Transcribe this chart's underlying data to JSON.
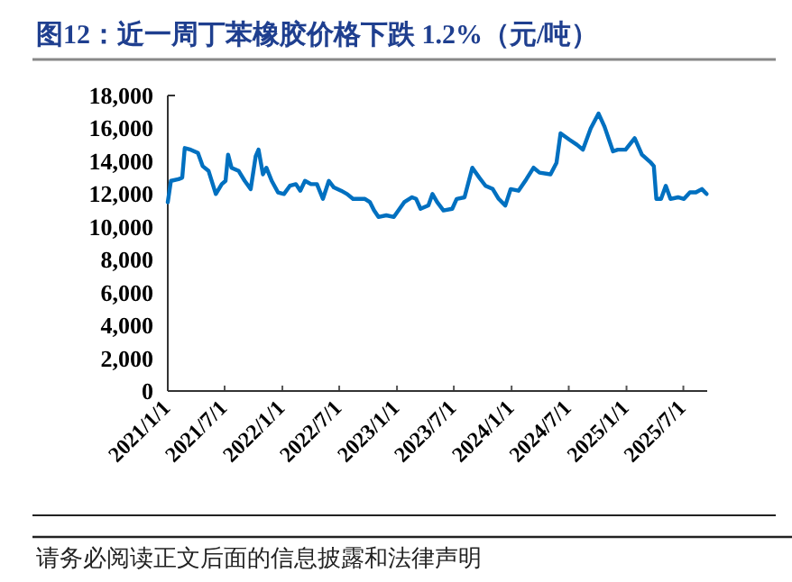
{
  "chart_data": {
    "type": "line",
    "title": "图12：近一周丁苯橡胶价格下跌 1.2%（元/吨）",
    "annotations": [
      "请务必阅读正文后面的信息披露和法律声明"
    ],
    "x": [
      "2021-01-01",
      "2021-01-11",
      "2021-02-04",
      "2021-02-16",
      "2021-02-24",
      "2021-03-15",
      "2021-04-07",
      "2021-04-22",
      "2021-05-11",
      "2021-06-03",
      "2021-06-22",
      "2021-07-04",
      "2021-07-12",
      "2021-07-23",
      "2021-08-15",
      "2021-09-03",
      "2021-09-22",
      "2021-10-08",
      "2021-10-17",
      "2021-10-31",
      "2021-11-11",
      "2021-11-28",
      "2021-12-18",
      "2022-01-06",
      "2022-01-25",
      "2022-02-13",
      "2022-02-27",
      "2022-03-14",
      "2022-04-02",
      "2022-04-21",
      "2022-05-10",
      "2022-05-29",
      "2022-06-14",
      "2022-07-07",
      "2022-07-26",
      "2022-08-14",
      "2022-09-21",
      "2022-10-07",
      "2022-10-20",
      "2022-11-03",
      "2022-11-28",
      "2022-12-22",
      "2023-01-24",
      "2023-02-18",
      "2023-03-03",
      "2023-03-17",
      "2023-04-11",
      "2023-04-24",
      "2023-05-09",
      "2023-05-29",
      "2023-06-26",
      "2023-07-10",
      "2023-08-04",
      "2023-08-29",
      "2023-09-20",
      "2023-10-10",
      "2023-11-02",
      "2023-11-21",
      "2023-12-12",
      "2023-12-29",
      "2024-01-23",
      "2024-02-17",
      "2024-03-11",
      "2024-03-30",
      "2024-05-04",
      "2024-05-23",
      "2024-06-05",
      "2024-07-04",
      "2024-07-27",
      "2024-08-15",
      "2024-09-09",
      "2024-10-04",
      "2024-10-23",
      "2024-11-19",
      "2024-12-04",
      "2024-12-29",
      "2025-01-27",
      "2025-02-19",
      "2025-03-20",
      "2025-03-29",
      "2025-04-06",
      "2025-04-21",
      "2025-05-06",
      "2025-05-21",
      "2025-06-14",
      "2025-07-03",
      "2025-07-22",
      "2025-08-10",
      "2025-08-29",
      "2025-09-13"
    ],
    "series": [
      {
        "color": "#0070c0",
        "values": [
          11500,
          12800,
          12900,
          13000,
          14800,
          14700,
          14500,
          13700,
          13400,
          12000,
          12600,
          12800,
          14400,
          13600,
          13400,
          12800,
          12300,
          14300,
          14700,
          13200,
          13600,
          12800,
          12100,
          12000,
          12500,
          12600,
          12200,
          12800,
          12600,
          12600,
          11700,
          12800,
          12400,
          12200,
          12000,
          11700,
          11700,
          11500,
          11000,
          10600,
          10700,
          10600,
          11500,
          11800,
          11700,
          11100,
          11300,
          12000,
          11500,
          11000,
          11100,
          11700,
          11800,
          13600,
          13000,
          12500,
          12300,
          11700,
          11300,
          12300,
          12200,
          12900,
          13600,
          13300,
          13200,
          13900,
          15700,
          15300,
          15000,
          14700,
          16000,
          16900,
          16100,
          14600,
          14700,
          14700,
          15400,
          14400,
          13900,
          13700,
          11700,
          11700,
          12500,
          11700,
          11800,
          11700,
          12100,
          12100,
          12300,
          12000
        ]
      }
    ],
    "xlim": [
      "2021-01-01",
      "2025-09-15"
    ],
    "xticks": [
      {
        "value": "2021-01-01",
        "label": "2021/1/1"
      },
      {
        "value": "2021-07-01",
        "label": "2021/7/1"
      },
      {
        "value": "2022-01-01",
        "label": "2022/1/1"
      },
      {
        "value": "2022-07-01",
        "label": "2022/7/1"
      },
      {
        "value": "2023-01-01",
        "label": "2023/1/1"
      },
      {
        "value": "2023-07-01",
        "label": "2023/7/1"
      },
      {
        "value": "2024-01-01",
        "label": "2024/1/1"
      },
      {
        "value": "2024-07-01",
        "label": "2024/7/1"
      },
      {
        "value": "2025-01-01",
        "label": "2025/1/1"
      },
      {
        "value": "2025-07-01",
        "label": "2025/7/1"
      }
    ],
    "ylim": [
      0,
      18000
    ],
    "yticks": [
      {
        "value": 0,
        "label": "0"
      },
      {
        "value": 2000,
        "label": "2,000"
      },
      {
        "value": 4000,
        "label": "4,000"
      },
      {
        "value": 6000,
        "label": "6,000"
      },
      {
        "value": 8000,
        "label": "8,000"
      },
      {
        "value": 10000,
        "label": "10,000"
      },
      {
        "value": 12000,
        "label": "12,000"
      },
      {
        "value": 14000,
        "label": "14,000"
      },
      {
        "value": 16000,
        "label": "16,000"
      },
      {
        "value": 18000,
        "label": "18,000"
      }
    ],
    "grid": false,
    "marker": "none",
    "line_style": "solid"
  }
}
